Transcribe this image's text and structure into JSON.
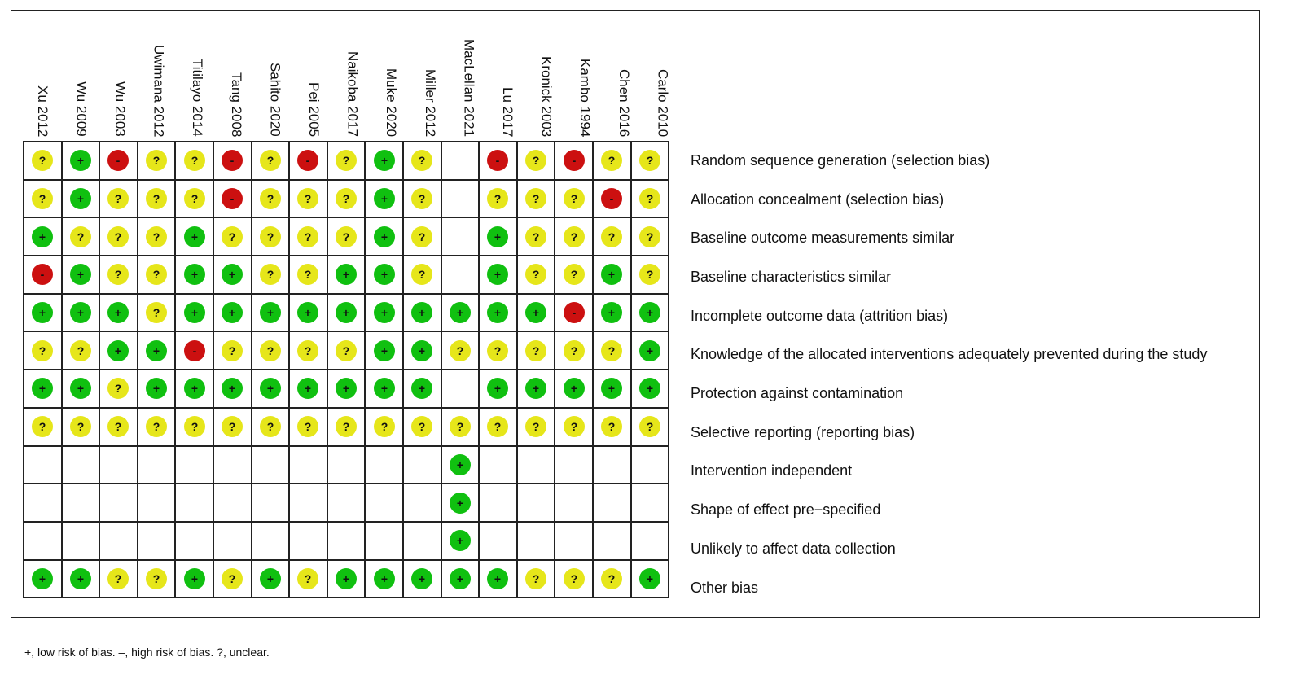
{
  "studies": [
    "Xu 2012",
    "Wu 2009",
    "Wu 2003",
    "Uwimana 2012",
    "Titilayo 2014",
    "Tang 2008",
    "Sahito 2020",
    "Pei 2005",
    "Naikoba 2017",
    "Muke 2020",
    "Miller 2012",
    "MacLellan 2021",
    "Lu 2017",
    "Kronick 2003",
    "Kambo 1994",
    "Chen 2016",
    "Carlo 2010"
  ],
  "domains": [
    {
      "label": "Random sequence generation (selection bias)",
      "ratings": [
        "?",
        "+",
        "-",
        "?",
        "?",
        "-",
        "?",
        "-",
        "?",
        "+",
        "?",
        "",
        "-",
        "?",
        "-",
        "?",
        "?"
      ]
    },
    {
      "label": "Allocation concealment (selection bias)",
      "ratings": [
        "?",
        "+",
        "?",
        "?",
        "?",
        "-",
        "?",
        "?",
        "?",
        "+",
        "?",
        "",
        "?",
        "?",
        "?",
        "-",
        "?"
      ]
    },
    {
      "label": "Baseline outcome measurements similar",
      "ratings": [
        "+",
        "?",
        "?",
        "?",
        "+",
        "?",
        "?",
        "?",
        "?",
        "+",
        "?",
        "",
        "+",
        "?",
        "?",
        "?",
        "?"
      ]
    },
    {
      "label": "Baseline characteristics similar",
      "ratings": [
        "-",
        "+",
        "?",
        "?",
        "+",
        "+",
        "?",
        "?",
        "+",
        "+",
        "?",
        "",
        "+",
        "?",
        "?",
        "+",
        "?"
      ]
    },
    {
      "label": "Incomplete outcome data (attrition bias)",
      "ratings": [
        "+",
        "+",
        "+",
        "?",
        "+",
        "+",
        "+",
        "+",
        "+",
        "+",
        "+",
        "+",
        "+",
        "+",
        "-",
        "+",
        "+"
      ]
    },
    {
      "label": "Knowledge of the allocated interventions adequately prevented during the study",
      "ratings": [
        "?",
        "?",
        "+",
        "+",
        "-",
        "?",
        "?",
        "?",
        "?",
        "+",
        "+",
        "?",
        "?",
        "?",
        "?",
        "?",
        "+"
      ]
    },
    {
      "label": "Protection against contamination",
      "ratings": [
        "+",
        "+",
        "?",
        "+",
        "+",
        "+",
        "+",
        "+",
        "+",
        "+",
        "+",
        "",
        "+",
        "+",
        "+",
        "+",
        "+"
      ]
    },
    {
      "label": "Selective reporting (reporting bias)",
      "ratings": [
        "?",
        "?",
        "?",
        "?",
        "?",
        "?",
        "?",
        "?",
        "?",
        "?",
        "?",
        "?",
        "?",
        "?",
        "?",
        "?",
        "?"
      ]
    },
    {
      "label": "Intervention independent",
      "ratings": [
        "",
        "",
        "",
        "",
        "",
        "",
        "",
        "",
        "",
        "",
        "",
        "+",
        "",
        "",
        "",
        "",
        ""
      ]
    },
    {
      "label": "Shape of effect pre−specified",
      "ratings": [
        "",
        "",
        "",
        "",
        "",
        "",
        "",
        "",
        "",
        "",
        "",
        "+",
        "",
        "",
        "",
        "",
        ""
      ]
    },
    {
      "label": "Unlikely to affect data collection",
      "ratings": [
        "",
        "",
        "",
        "",
        "",
        "",
        "",
        "",
        "",
        "",
        "",
        "+",
        "",
        "",
        "",
        "",
        ""
      ]
    },
    {
      "label": "Other bias",
      "ratings": [
        "+",
        "+",
        "?",
        "?",
        "+",
        "?",
        "+",
        "?",
        "+",
        "+",
        "+",
        "+",
        "+",
        "?",
        "?",
        "?",
        "+"
      ]
    }
  ],
  "colors": {
    "+": "#10c010",
    "-": "#cc1010",
    "?": "#e6e61a"
  },
  "rating_names": {
    "+": "low-risk",
    "-": "high-risk",
    "?": "unclear-risk"
  },
  "footnote": "+, low risk of bias. –, high risk of bias. ?, unclear."
}
